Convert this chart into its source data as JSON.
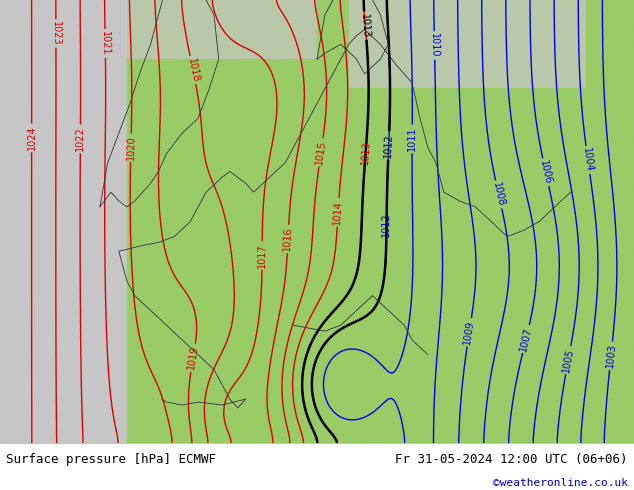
{
  "title_left": "Surface pressure [hPa] ECMWF",
  "title_right": "Fr 31-05-2024 12:00 UTC (06+06)",
  "copyright": "©weatheronline.co.uk",
  "land_color": "#99cc66",
  "sea_color": "#c8c8c8",
  "footer_bg": "#ffffff",
  "footer_text_color": "#000000",
  "copyright_color": "#0000cc",
  "contour_blue_color": "#0000ee",
  "contour_red_color": "#dd0000",
  "contour_black_color": "#000000",
  "border_color": "#333333",
  "label_fontsize": 7,
  "footer_fontsize": 9,
  "figsize": [
    6.34,
    4.9
  ],
  "dpi": 100,
  "map_extent": [
    -12,
    28,
    42,
    57
  ],
  "contour_interval": 1,
  "blue_levels": [
    1003,
    1004,
    1005,
    1006,
    1007,
    1008,
    1009,
    1010,
    1011,
    1012
  ],
  "black_levels": [
    1012,
    1013
  ],
  "red_levels": [
    1013,
    1014,
    1015,
    1016,
    1017,
    1018,
    1019,
    1020,
    1021,
    1022,
    1023,
    1024
  ]
}
